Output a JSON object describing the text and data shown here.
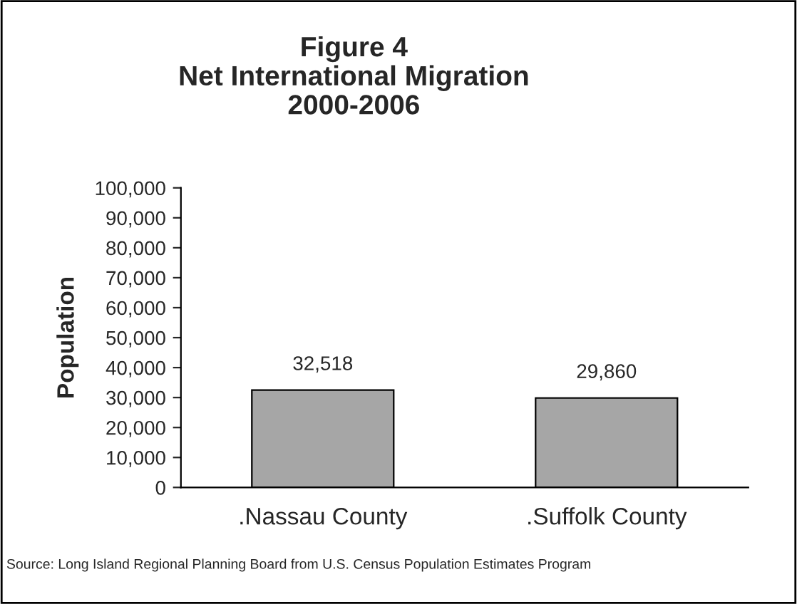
{
  "chart_data": {
    "type": "bar",
    "title": "Figure 4\nNet International Migration\n2000-2006",
    "categories": [
      ".Nassau County",
      ".Suffolk County"
    ],
    "values": [
      32518,
      29860
    ],
    "color": "#a6a6a6",
    "value_labels": [
      "32,518",
      "29,860"
    ],
    "ylabel": "Population",
    "ylim": [
      0,
      100000
    ],
    "yticks": [
      0,
      {
        "value": 10000,
        "label": "10,000"
      },
      {
        "value": 20000,
        "label": "20,000"
      },
      {
        "value": 30000,
        "label": "30,000"
      },
      {
        "value": 40000,
        "label": "40,000"
      },
      {
        "value": 50000,
        "label": "50,000"
      },
      {
        "value": 60000,
        "label": "60,000"
      },
      {
        "value": 70000,
        "label": "70,000"
      },
      {
        "value": 80000,
        "label": "80,000"
      },
      {
        "value": 90000,
        "label": "90,000"
      },
      {
        "value": 100000,
        "label": "100,000"
      }
    ],
    "annotations": [
      "Source: Long Island Regional Planning Board from U.S. Census Population Estimates Program"
    ],
    "grid": false,
    "legend": false
  }
}
